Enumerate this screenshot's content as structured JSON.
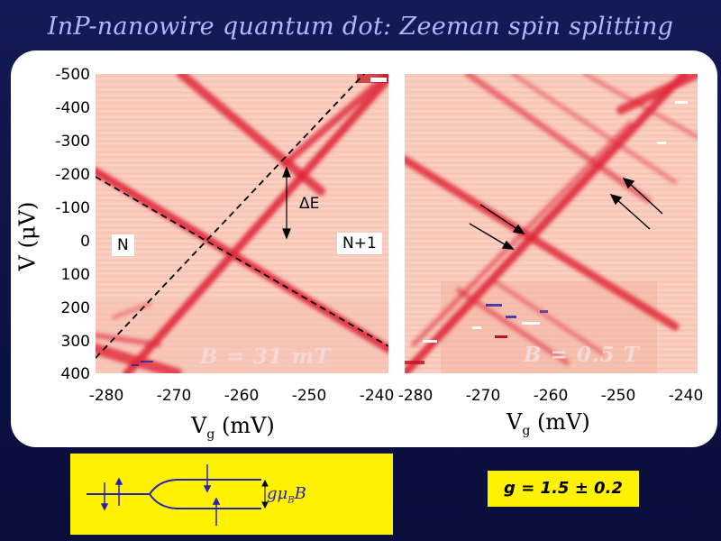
{
  "title": "InP-nanowire quantum dot: Zeeman spin splitting",
  "panels": {
    "left": {
      "field_label": "B = 31 mT",
      "region_left": "N",
      "region_right": "N+1",
      "delta_label": "ΔE"
    },
    "right": {
      "field_label": "B = 0.5 T"
    }
  },
  "axes": {
    "ylabel": "V (μV)",
    "xlabel_main": "V",
    "xlabel_sub": "g",
    "xlabel_unit": " (mV)",
    "yticks": [
      "-500",
      "-400",
      "-300",
      "-200",
      "-100",
      "0",
      "100",
      "200",
      "300",
      "400"
    ],
    "xticks": [
      "-280",
      "-270",
      "-260",
      "-250",
      "-240"
    ]
  },
  "diagram": {
    "g_symbol": "g",
    "mu_symbol": "μ",
    "mu_sub": "B",
    "b_symbol": "B"
  },
  "g_value": "g = 1.5 ± 0.2",
  "colors": {
    "background": "#0d1248",
    "title": "#aeb8ff",
    "yellow": "#fff200",
    "map_base": "#f8cbbd",
    "ridge": "#e0283a",
    "arrow": "#1f22a8"
  }
}
